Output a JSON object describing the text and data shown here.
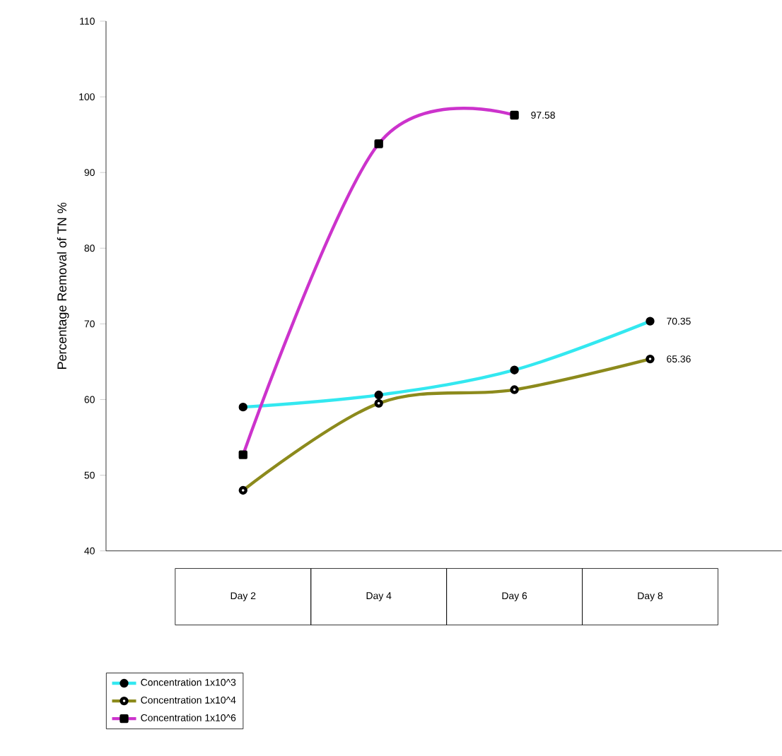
{
  "chart_data": {
    "type": "line",
    "ylabel": "Percentage Removal of TN %",
    "categories": [
      "Day 2",
      "Day 4",
      "Day 6",
      "Day 8"
    ],
    "series": [
      {
        "name": "Concentration 1x10^3",
        "color": "#33e8f0",
        "marker": "circle",
        "values": [
          59,
          60.6,
          63.9,
          70.35
        ],
        "value_labels": [
          null,
          null,
          null,
          "70.35"
        ]
      },
      {
        "name": "Concentration 1x10^4",
        "color": "#8c8a1c",
        "marker": "open circle",
        "values": [
          48,
          59.5,
          61.3,
          65.36
        ],
        "value_labels": [
          null,
          null,
          null,
          "65.36"
        ]
      },
      {
        "name": "Concentration 1x10^6",
        "color": "#cc33cc",
        "marker": "square",
        "values": [
          52.7,
          93.8,
          97.58,
          null
        ],
        "value_labels": [
          null,
          null,
          "97.58",
          null
        ]
      }
    ],
    "ylim": [
      40,
      110
    ],
    "yticks": [
      40,
      50,
      60,
      70,
      80,
      90,
      100,
      110
    ],
    "grid": false,
    "legend": "bottom left",
    "line_style": "solid"
  }
}
